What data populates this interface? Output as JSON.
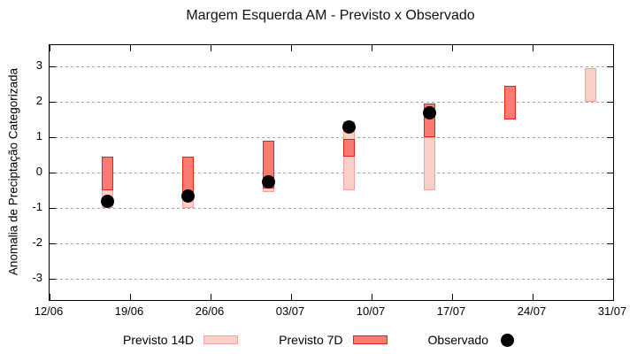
{
  "title": "Margem Esquerda AM - Previsto x Observado",
  "colors": {
    "previsto_14d_fill": "#f9cfc7",
    "previsto_14d_border": "#f2a29a",
    "previsto_7d_fill": "#f97b72",
    "previsto_7d_border": "#e6211a",
    "observado": "#000000",
    "grid": "#a3a3a3",
    "axis": "#000000"
  },
  "legend": {
    "items": [
      {
        "label": "Previsto 14D",
        "swatch": "box-light"
      },
      {
        "label": "Previsto 7D",
        "swatch": "box-red"
      },
      {
        "label": "Observado",
        "swatch": "black-dot"
      }
    ]
  },
  "chart_data": {
    "type": "bar",
    "title": "Margem Esquerda AM - Previsto x Observado",
    "xlabel": "",
    "ylabel": "Anomalia de Preciptação Categorizada",
    "ylim": [
      -3.6,
      3.6
    ],
    "y_ticks": [
      3,
      2,
      1,
      0,
      -1,
      -2,
      -3
    ],
    "x_axis_days": [
      0,
      49
    ],
    "x_ticks": [
      {
        "day": 0,
        "label": "12/06"
      },
      {
        "day": 7,
        "label": "19/06"
      },
      {
        "day": 14,
        "label": "26/06"
      },
      {
        "day": 21,
        "label": "03/07"
      },
      {
        "day": 28,
        "label": "10/07"
      },
      {
        "day": 35,
        "label": "17/07"
      },
      {
        "day": 42,
        "label": "24/07"
      },
      {
        "day": 49,
        "label": "31/07"
      }
    ],
    "grid": true,
    "legend_position": "bottom",
    "series": [
      {
        "name": "Previsto 14D",
        "style": "box-light"
      },
      {
        "name": "Previsto 7D",
        "style": "box-red"
      },
      {
        "name": "Observado",
        "style": "dot-black"
      }
    ],
    "bars": [
      {
        "date": "17/06",
        "day": 5,
        "previsto_14d": [
          -1.0,
          0.45
        ],
        "previsto_7d": [
          -0.5,
          0.45
        ],
        "observado": -0.8
      },
      {
        "date": "24/06",
        "day": 12,
        "previsto_14d": [
          -1.0,
          0.45
        ],
        "previsto_7d": [
          -0.6,
          0.45
        ],
        "observado": -0.65
      },
      {
        "date": "01/07",
        "day": 19,
        "previsto_14d": [
          -0.55,
          0.9
        ],
        "previsto_7d": [
          -0.45,
          0.9
        ],
        "observado": -0.25
      },
      {
        "date": "08/07",
        "day": 26,
        "previsto_14d": [
          -0.5,
          1.45
        ],
        "previsto_7d": [
          0.45,
          0.95
        ],
        "observado": 1.3
      },
      {
        "date": "15/07",
        "day": 33,
        "previsto_14d": [
          -0.5,
          1.0
        ],
        "previsto_7d": [
          1.0,
          1.95
        ],
        "observado": 1.7
      },
      {
        "date": "22/07",
        "day": 40,
        "previsto_14d": null,
        "previsto_7d": [
          1.5,
          2.45
        ],
        "observado": null
      },
      {
        "date": "29/07",
        "day": 47,
        "previsto_14d": [
          2.0,
          2.95
        ],
        "previsto_7d": null,
        "observado": null
      }
    ]
  }
}
